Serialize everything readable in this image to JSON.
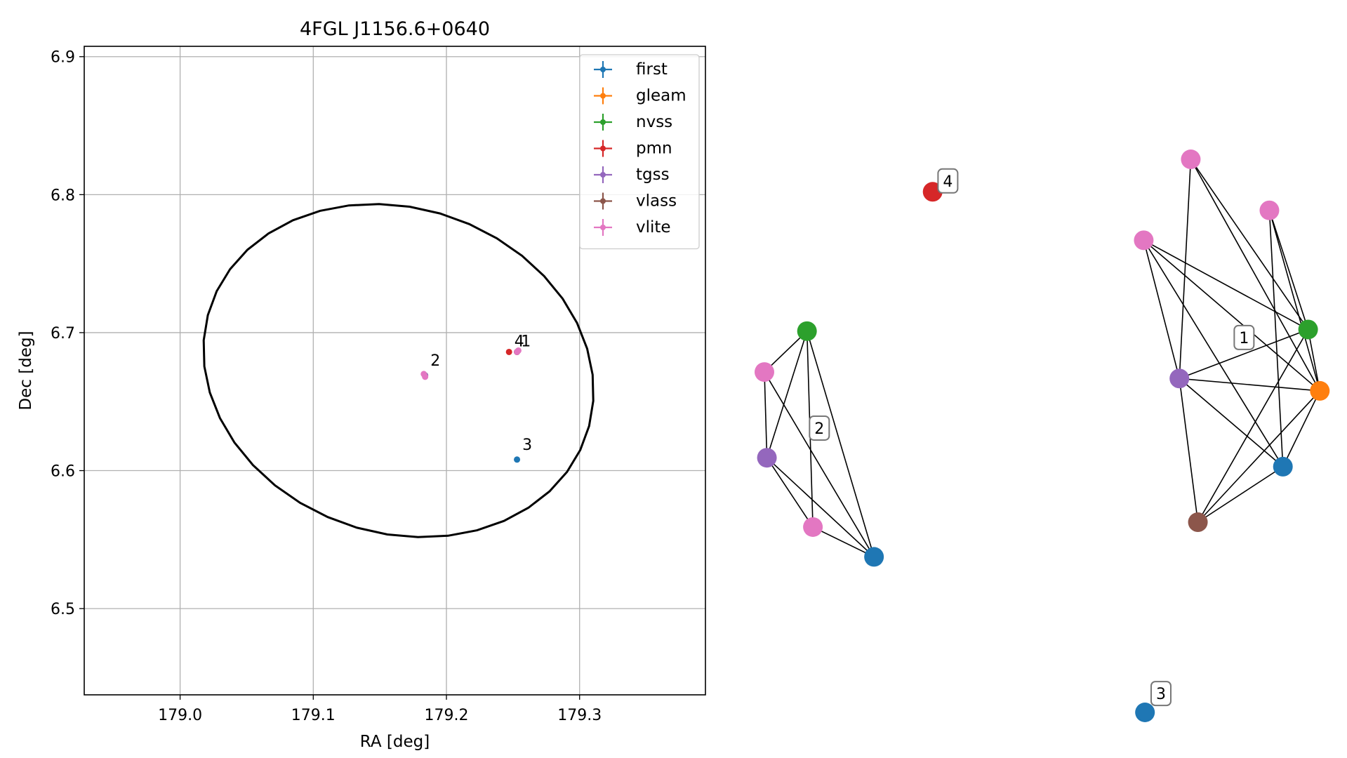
{
  "chart_data": [
    {
      "type": "scatter",
      "title": "4FGL J1156.6+0640",
      "xlabel": "RA [deg]",
      "ylabel": "Dec [deg]",
      "xlim": [
        178.928,
        179.3945
      ],
      "ylim": [
        6.4375,
        6.9075
      ],
      "xticks": [
        179.0,
        179.1,
        179.2,
        179.3
      ],
      "xtick_labels": [
        "179.0",
        "179.1",
        "179.2",
        "179.3"
      ],
      "yticks": [
        6.5,
        6.6,
        6.7,
        6.8,
        6.9
      ],
      "ytick_labels": [
        "6.5",
        "6.6",
        "6.7",
        "6.8",
        "6.9"
      ],
      "grid": true,
      "legend_position": "top-right",
      "series": [
        {
          "name": "first",
          "color": "#1f77b4",
          "points": [
            [
              179.253,
              6.608
            ]
          ]
        },
        {
          "name": "gleam",
          "color": "#ff7f0e",
          "points": [
            [
              179.253,
              6.686
            ]
          ]
        },
        {
          "name": "nvss",
          "color": "#2ca02c",
          "points": [
            [
              179.184,
              6.669
            ]
          ]
        },
        {
          "name": "pmn",
          "color": "#d62728",
          "points": [
            [
              179.247,
              6.686
            ]
          ]
        },
        {
          "name": "tgss",
          "color": "#9467bd",
          "points": [
            [
              179.184,
              6.669
            ],
            [
              179.253,
              6.686
            ]
          ]
        },
        {
          "name": "vlass",
          "color": "#8c564b",
          "points": [
            [
              179.253,
              6.686
            ]
          ]
        },
        {
          "name": "vlite",
          "color": "#e377c2",
          "points": [
            [
              179.183,
              6.67
            ],
            [
              179.184,
              6.668
            ],
            [
              179.253,
              6.686
            ],
            [
              179.254,
              6.687
            ]
          ]
        }
      ],
      "annotations": [
        {
          "text": "1",
          "x": 179.256,
          "y": 6.687
        },
        {
          "text": "2",
          "x": 179.188,
          "y": 6.673
        },
        {
          "text": "3",
          "x": 179.257,
          "y": 6.612
        },
        {
          "text": "4",
          "x": 179.251,
          "y": 6.687
        }
      ],
      "ellipse": {
        "ra": 179.164,
        "dec": 6.6725,
        "ra_half_width": 0.148,
        "dec_half_height": 0.124,
        "angle_deg": 25,
        "color": "#000000"
      }
    },
    {
      "type": "network",
      "nodes": [
        {
          "id": "a0",
          "color": "#2ca02c",
          "x": 0.1305,
          "y": 0.6893
        },
        {
          "id": "a1",
          "color": "#e377c2",
          "x": 0.0,
          "y": 0.6154
        },
        {
          "id": "a2",
          "color": "#9467bd",
          "x": 0.0077,
          "y": 0.4604
        },
        {
          "id": "a3",
          "color": "#e377c2",
          "x": 0.1486,
          "y": 0.3351
        },
        {
          "id": "a4",
          "color": "#1f77b4",
          "x": 0.3358,
          "y": 0.2812
        },
        {
          "id": "b0",
          "color": "#e377c2",
          "x": 1.3063,
          "y": 1.0
        },
        {
          "id": "b1",
          "color": "#e377c2",
          "x": 1.5472,
          "y": 0.9077
        },
        {
          "id": "b2",
          "color": "#e377c2",
          "x": 1.1622,
          "y": 0.8536
        },
        {
          "id": "b3",
          "color": "#2ca02c",
          "x": 1.6658,
          "y": 0.6923
        },
        {
          "id": "b4",
          "color": "#9467bd",
          "x": 1.2714,
          "y": 0.6037
        },
        {
          "id": "b5",
          "color": "#ff7f0e",
          "x": 1.7017,
          "y": 0.5813
        },
        {
          "id": "b6",
          "color": "#1f77b4",
          "x": 1.5886,
          "y": 0.4443
        },
        {
          "id": "b7",
          "color": "#8c564b",
          "x": 1.3281,
          "y": 0.3439
        },
        {
          "id": "c0",
          "color": "#1f77b4",
          "x": 1.166,
          "y": 0.0
        },
        {
          "id": "d0",
          "color": "#d62728",
          "x": 0.5155,
          "y": 0.9413
        }
      ],
      "edges": [
        [
          "a0",
          "a1"
        ],
        [
          "a0",
          "a2"
        ],
        [
          "a0",
          "a3"
        ],
        [
          "a0",
          "a4"
        ],
        [
          "a1",
          "a2"
        ],
        [
          "a1",
          "a4"
        ],
        [
          "a2",
          "a3"
        ],
        [
          "a2",
          "a4"
        ],
        [
          "a3",
          "a4"
        ],
        [
          "b0",
          "b3"
        ],
        [
          "b0",
          "b4"
        ],
        [
          "b0",
          "b5"
        ],
        [
          "b1",
          "b3"
        ],
        [
          "b1",
          "b5"
        ],
        [
          "b1",
          "b6"
        ],
        [
          "b2",
          "b3"
        ],
        [
          "b2",
          "b4"
        ],
        [
          "b2",
          "b5"
        ],
        [
          "b2",
          "b6"
        ],
        [
          "b3",
          "b4"
        ],
        [
          "b3",
          "b5"
        ],
        [
          "b3",
          "b7"
        ],
        [
          "b4",
          "b5"
        ],
        [
          "b4",
          "b6"
        ],
        [
          "b4",
          "b7"
        ],
        [
          "b5",
          "b6"
        ],
        [
          "b5",
          "b7"
        ],
        [
          "b6",
          "b7"
        ]
      ],
      "group_labels": [
        {
          "text": "1",
          "x": 1.4696,
          "y": 0.6778
        },
        {
          "text": "2",
          "x": 0.1684,
          "y": 0.514
        },
        {
          "text": "3",
          "x": 1.215,
          "y": 0.0341
        },
        {
          "text": "4",
          "x": 0.5621,
          "y": 0.9609
        }
      ]
    }
  ]
}
